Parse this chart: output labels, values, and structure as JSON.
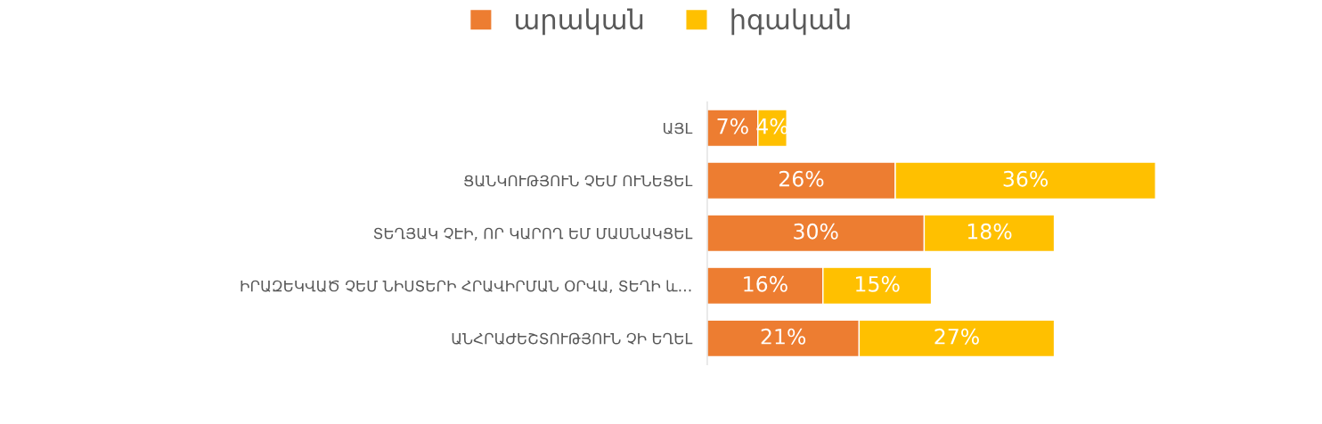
{
  "chart_data": {
    "type": "bar",
    "orientation": "horizontal",
    "stacked": true,
    "legend": "top",
    "categories": [
      "ԱՅԼ",
      "ՑԱՆԿՈՒԹՅՈՒՆ ՉԵՄ ՈՒՆԵՑԵԼ",
      "ՏԵՂՅԱԿ ՉԷԻ, ՈՐ ԿԱՐՈՂ ԵՄ ՄԱՍՆԱԿՑԵԼ",
      "ԻՐԱԶԵԿՎԱԾ ՉԵՄ ՆԻՍՏԵՐԻ ՀՐԱՎԻՐՄԱՆ ՕՐՎԱ, ՏԵՂԻ և…",
      "ԱՆՀՐԱԺԵՇՏՈՒԹՅՈՒՆ ՉԻ ԵՂԵԼ"
    ],
    "series": [
      {
        "name": "արական",
        "color": "#ed7d31",
        "values": [
          7,
          26,
          30,
          16,
          21
        ],
        "value_labels": [
          "7%",
          "26%",
          "30%",
          "16%",
          "21%"
        ]
      },
      {
        "name": "իգական",
        "color": "#ffc000",
        "values": [
          4,
          36,
          18,
          15,
          27
        ],
        "value_labels": [
          "4%",
          "36%",
          "18%",
          "15%",
          "27%"
        ]
      }
    ]
  }
}
